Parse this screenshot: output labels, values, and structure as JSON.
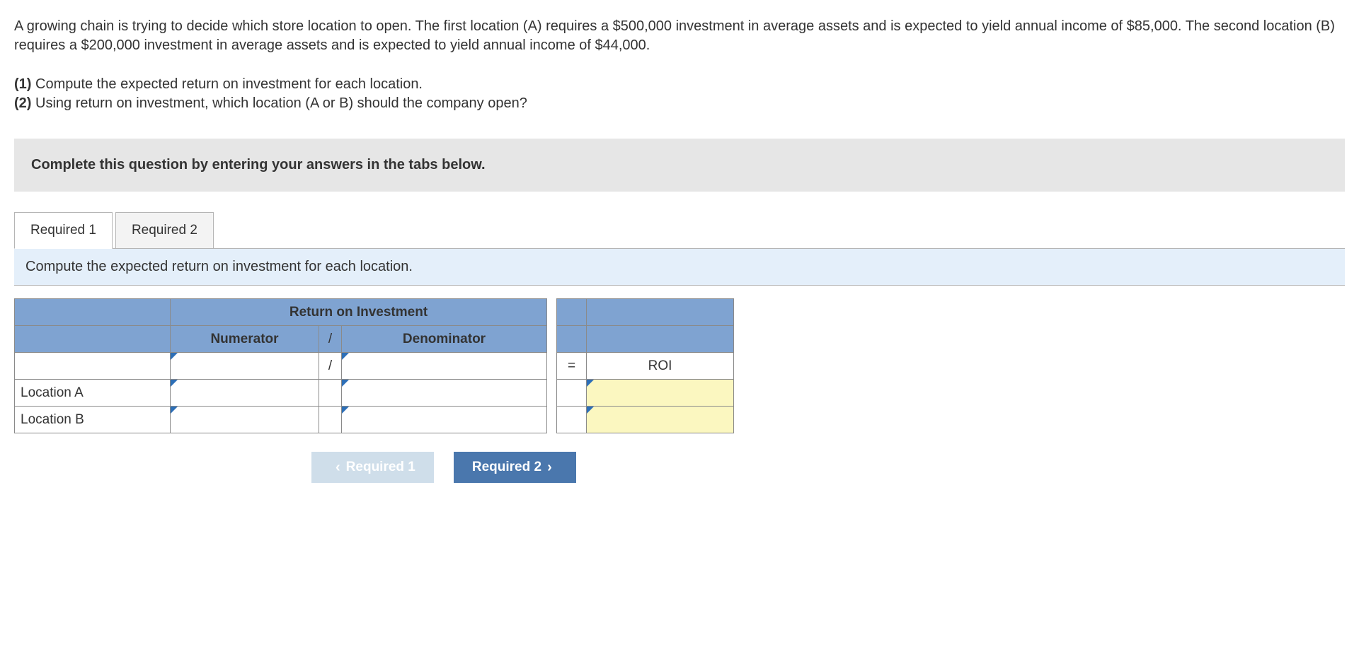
{
  "problem_text": "A growing chain is trying to decide which store location to open. The first location (A) requires a $500,000 investment in average assets and is expected to yield annual income of $85,000. The second location (B) requires a $200,000 investment in average assets and is expected to yield annual income of $44,000.",
  "questions": {
    "q1_bold": "(1)",
    "q1_text": " Compute the expected return on investment for each location.",
    "q2_bold": "(2)",
    "q2_text": " Using return on investment, which location (A or B) should the company open?"
  },
  "instruction": "Complete this question by entering your answers in the tabs below.",
  "tabs": {
    "t1": "Required 1",
    "t2": "Required 2"
  },
  "tab_prompt": "Compute the expected return on investment for each location.",
  "table": {
    "title": "Return on Investment",
    "numerator": "Numerator",
    "slash": "/",
    "denominator": "Denominator",
    "equals": "=",
    "roi": "ROI",
    "row_a": "Location A",
    "row_b": "Location B"
  },
  "nav": {
    "prev": "Required 1",
    "next": "Required 2"
  },
  "colors": {
    "header_blue": "#7fa3d1",
    "prompt_blue": "#e4effa",
    "instruction_gray": "#e6e6e6",
    "yellow": "#fbf7c0",
    "nav_prev": "#cfdeea",
    "nav_next": "#4a77ad",
    "corner_marker": "#2d6fb7"
  }
}
